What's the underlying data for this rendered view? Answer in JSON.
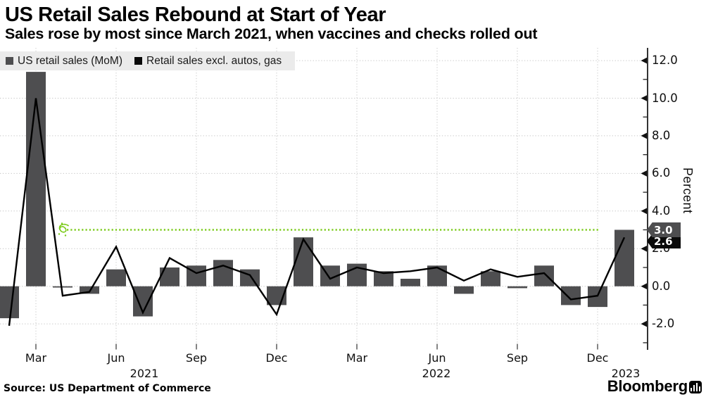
{
  "header": {
    "title": "US Retail Sales Rebound at Start of Year",
    "subtitle": "Sales rose by most since March 2021, when vaccines and checks rolled out"
  },
  "legend": [
    {
      "label": "US retail sales (MoM)",
      "color": "#4e4e50"
    },
    {
      "label": "Retail sales excl. autos, gas",
      "color": "#0a0a0a"
    }
  ],
  "chart_data": {
    "type": "bar+line",
    "x": [
      "Feb 2021",
      "Mar 2021",
      "Apr 2021",
      "May 2021",
      "Jun 2021",
      "Jul 2021",
      "Aug 2021",
      "Sep 2021",
      "Oct 2021",
      "Nov 2021",
      "Dec 2021",
      "Jan 2022",
      "Feb 2022",
      "Mar 2022",
      "Apr 2022",
      "May 2022",
      "Jun 2022",
      "Jul 2022",
      "Aug 2022",
      "Sep 2022",
      "Oct 2022",
      "Nov 2022",
      "Dec 2022",
      "Jan 2023"
    ],
    "series": [
      {
        "name": "US retail sales (MoM)",
        "type": "bar",
        "color": "#4e4e50",
        "values": [
          -1.7,
          11.4,
          0.0,
          -0.4,
          0.9,
          -1.6,
          1.0,
          1.1,
          1.4,
          0.9,
          -1.0,
          2.6,
          1.1,
          1.2,
          0.8,
          0.4,
          1.1,
          -0.4,
          0.8,
          -0.1,
          1.1,
          -1.0,
          -1.1,
          3.0
        ]
      },
      {
        "name": "Retail sales excl. autos, gas",
        "type": "line",
        "color": "#000000",
        "values": [
          -2.1,
          10.0,
          -0.5,
          -0.3,
          2.1,
          -1.4,
          1.5,
          0.7,
          1.1,
          0.6,
          -1.5,
          2.5,
          0.4,
          1.0,
          0.7,
          0.8,
          1.0,
          0.3,
          0.9,
          0.5,
          0.7,
          -0.7,
          -0.5,
          2.6
        ]
      }
    ],
    "annotation": {
      "type": "dotted-reference-line",
      "value": 3.0,
      "color": "#7ccb1c",
      "x_start": "Apr 2021",
      "x_end": "Dec 2022"
    },
    "y_axis": {
      "label": "Percent",
      "ticks": [
        12,
        10,
        8,
        6,
        4,
        2,
        0,
        -2
      ],
      "tick_labels": [
        "12.0",
        "10.0",
        "8.0",
        "6.0",
        "4.0",
        "2.0",
        "0.0",
        "-2.0"
      ],
      "minor_ticks": [
        11,
        9,
        7,
        5,
        3,
        1,
        -1,
        -3
      ],
      "range": [
        -3.2,
        12.7
      ]
    },
    "x_axis": {
      "tick_labels": [
        "Mar",
        "Jun",
        "Sep",
        "Dec",
        "Mar",
        "Jun",
        "Sep",
        "Dec"
      ],
      "year_labels": [
        "2021",
        "2022",
        "2023"
      ]
    },
    "end_badges": [
      {
        "value": "3.0",
        "series": "US retail sales (MoM)",
        "color": "#4e4e50"
      },
      {
        "value": "2.6",
        "series": "Retail sales excl. autos, gas",
        "color": "#0a0a0a"
      }
    ],
    "grid": true,
    "legend_position": "top-left"
  },
  "footer": {
    "source": "Source:  US Department of Commerce",
    "brand": "Bloomberg"
  }
}
